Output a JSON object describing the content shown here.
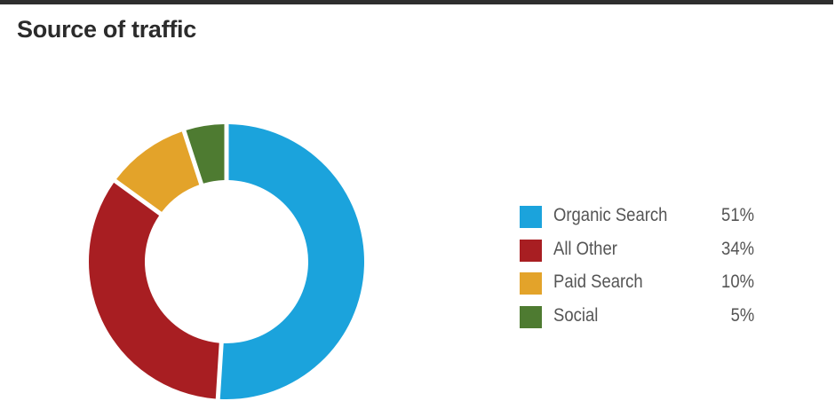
{
  "colors": {
    "rule": "#2e2e2e",
    "title": "#2b2b2b",
    "legend_text": "#555555",
    "organic_search": "#1ba3dc",
    "all_other": "#a81e22",
    "paid_search": "#e3a32a",
    "social": "#4e7b31"
  },
  "chart_data": {
    "type": "pie",
    "variant": "donut",
    "title": "Source of traffic",
    "categories": [
      "Organic Search",
      "All Other",
      "Paid Search",
      "Social"
    ],
    "values": [
      51,
      34,
      10,
      5
    ],
    "value_labels": [
      "51%",
      "34%",
      "10%",
      "5%"
    ],
    "colors": [
      "#1ba3dc",
      "#a81e22",
      "#e3a32a",
      "#4e7b31"
    ],
    "start_angle": "12 o'clock",
    "direction": "clockwise",
    "legend_position": "right"
  }
}
